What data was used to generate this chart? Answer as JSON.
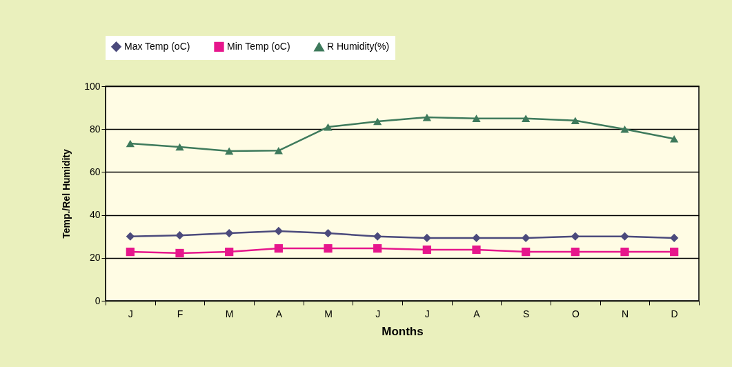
{
  "chart_data": {
    "type": "line",
    "xlabel": "Months",
    "ylabel": "Temp./Rel Humidity",
    "categories": [
      "J",
      "F",
      "M",
      "A",
      "M",
      "J",
      "J",
      "A",
      "S",
      "O",
      "N",
      "D"
    ],
    "series": [
      {
        "name": "Max Temp (oC)",
        "color": "#4b4a7c",
        "marker": "diamond",
        "values": [
          30,
          30.5,
          31.5,
          32.5,
          31.5,
          30,
          29.3,
          29.3,
          29.3,
          30,
          30,
          29.3
        ]
      },
      {
        "name": "Min Temp (oC)",
        "color": "#e6168c",
        "marker": "square",
        "values": [
          22.8,
          22.2,
          22.8,
          24.4,
          24.4,
          24.4,
          23.8,
          23.8,
          22.8,
          22.8,
          22.8,
          22.8
        ]
      },
      {
        "name": "R Humidity(%)",
        "color": "#3e7a5c",
        "marker": "triangle",
        "values": [
          73.3,
          71.7,
          69.8,
          70,
          81,
          83.6,
          85.5,
          85,
          85,
          84,
          80,
          75.5
        ]
      }
    ],
    "ylim": [
      0,
      100
    ],
    "yticks": [
      0,
      20,
      40,
      60,
      80,
      100
    ],
    "grid": "y",
    "legend": "top"
  }
}
